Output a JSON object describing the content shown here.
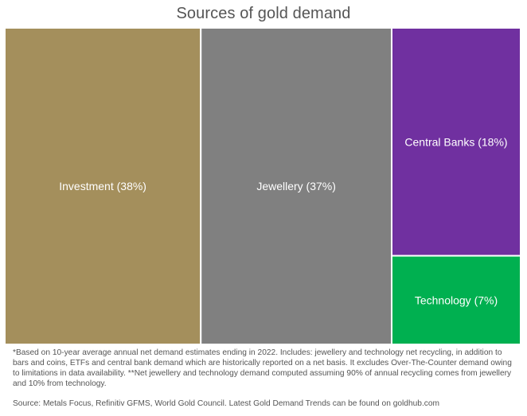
{
  "chart_data": {
    "type": "treemap",
    "title": "Sources of gold demand",
    "tiles": [
      {
        "name": "Investment",
        "label": "Investment (38%)",
        "value": 38,
        "color": "#A48F5C"
      },
      {
        "name": "Jewellery",
        "label": "Jewellery (37%)",
        "value": 37,
        "color": "#808080"
      },
      {
        "name": "Central Banks",
        "label": "Central Banks (18%)",
        "value": 18,
        "color": "#7030A0"
      },
      {
        "name": "Technology",
        "label": "Technology (7%)",
        "value": 7,
        "color": "#00B050"
      }
    ]
  },
  "footnote": "*Based on 10-year average annual net demand estimates ending in 2022.  Includes: jewellery and technology net recycling, in addition to bars and coins, ETFs and central bank demand which are historically reported on a net basis. It excludes Over-The-Counter demand owing to limitations in data availability.  **Net jewellery and technology demand computed assuming 90% of annual recycling comes from jewellery and 10% from technology.",
  "source": "Source: Metals Focus, Refinitiv GFMS, World Gold Council.  Latest Gold Demand Trends can be found on goldhub.com"
}
